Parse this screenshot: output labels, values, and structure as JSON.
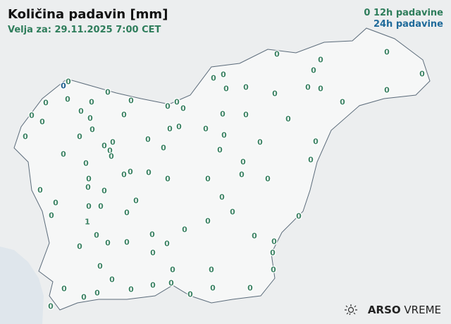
{
  "header": {
    "title": "Količina padavin [mm]",
    "valid_for": "Velja za: 29.11.2025 7:00 CET"
  },
  "legend": {
    "symbol": "0",
    "h12": "12h padavine",
    "h24": "24h padavine",
    "colors": {
      "h12": "#3f8466",
      "h24": "#1f5f8f"
    }
  },
  "logo": {
    "brand": "ARSO",
    "product": "VREME",
    "icon": "sun-cloud-icon"
  },
  "map": {
    "region": "Slovenia",
    "sea_color": "#dfe6ec",
    "border_color": "#5b6b7a"
  },
  "stations": {
    "values": [
      "0",
      "0",
      "0",
      "0",
      "0",
      "0",
      "0",
      "0",
      "0",
      "0",
      "0",
      "0",
      "0",
      "0",
      "0",
      "0",
      "0",
      "0",
      "0",
      "0",
      "0",
      "0",
      "0",
      "0",
      "0",
      "0",
      "0",
      "0",
      "0",
      "0",
      "0",
      "0",
      "0",
      "0",
      "0",
      "0",
      "0",
      "0",
      "0",
      "0",
      "0",
      "0",
      "1",
      "0",
      "0",
      "0",
      "0",
      "0",
      "0",
      "0",
      "0",
      "0",
      "0",
      "0",
      "0",
      "0",
      "0",
      "0",
      "0",
      "0",
      "0",
      "0",
      "0",
      "0",
      "0",
      "0",
      "0",
      "0",
      "0",
      "0",
      "0",
      "0",
      "0",
      "0",
      "0",
      "0",
      "0",
      "0",
      "0",
      "0",
      "0",
      "0",
      "0",
      "0",
      "0",
      "0",
      "0",
      "0",
      "0",
      "0",
      "0",
      "0",
      "0",
      "0",
      "0",
      "0",
      "0",
      "0",
      "0",
      "0",
      "0",
      "0",
      "0"
    ],
    "type_24h_index": 1
  }
}
